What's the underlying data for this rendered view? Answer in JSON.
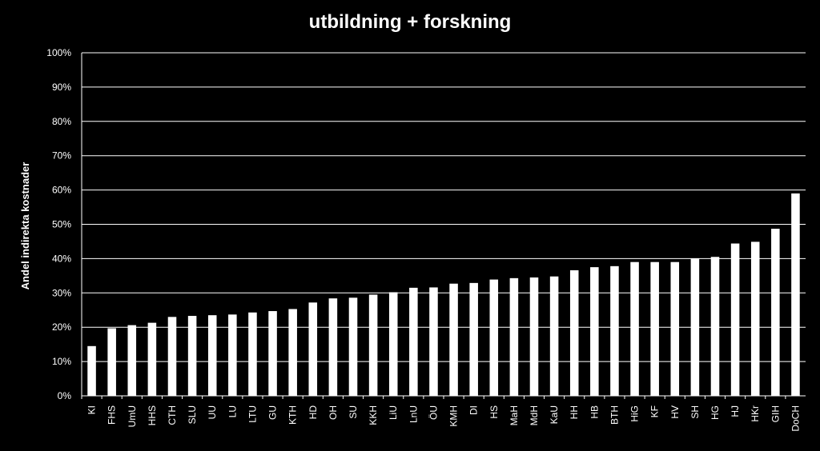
{
  "chart_data": {
    "type": "bar",
    "title": "utbildning + forskning",
    "xlabel": "",
    "ylabel": "Andel indirekta kostnader",
    "ylim": [
      0,
      100
    ],
    "y_unit": "%",
    "yticks": [
      "0%",
      "10%",
      "20%",
      "30%",
      "40%",
      "50%",
      "60%",
      "70%",
      "80%",
      "90%",
      "100%"
    ],
    "grid": true,
    "categories": [
      "KI",
      "FHS",
      "UmU",
      "HHS",
      "CTH",
      "SLU",
      "UU",
      "LU",
      "LTU",
      "GU",
      "KTH",
      "HD",
      "OH",
      "SU",
      "KKH",
      "LiU",
      "LnU",
      "ÖU",
      "KMH",
      "DI",
      "HS",
      "MaH",
      "MdH",
      "KaU",
      "HH",
      "HB",
      "BTH",
      "HiG",
      "KF",
      "HV",
      "SH",
      "HG",
      "HJ",
      "HKr",
      "GIH",
      "DoCH"
    ],
    "values": [
      14.5,
      19.7,
      20.6,
      21.3,
      23.0,
      23.3,
      23.5,
      23.7,
      24.3,
      24.7,
      25.3,
      27.2,
      28.4,
      28.6,
      29.5,
      30.2,
      31.5,
      31.6,
      32.7,
      32.9,
      33.9,
      34.3,
      34.5,
      34.8,
      36.6,
      37.5,
      37.8,
      39.0,
      39.0,
      39.0,
      40.0,
      40.5,
      44.4,
      44.9,
      48.7,
      59.0
    ],
    "colors": {
      "background": "#000000",
      "bar": "#ffffff",
      "grid": "#ffffff",
      "text": "#ffffff"
    }
  }
}
